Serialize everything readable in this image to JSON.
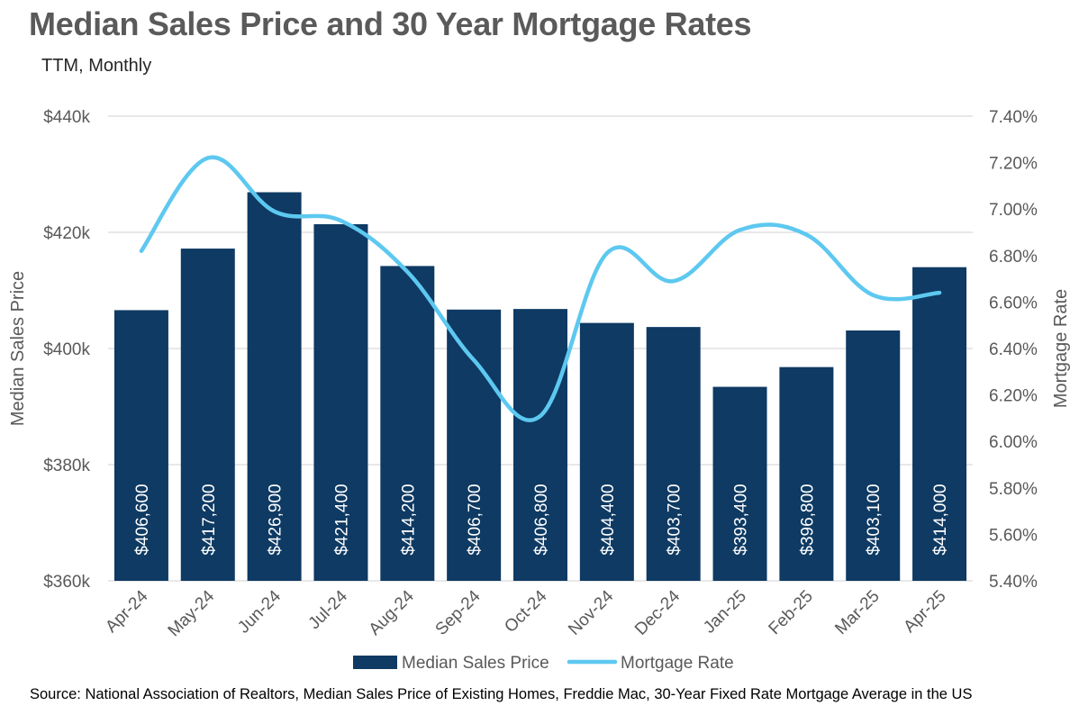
{
  "header": {
    "title": "Median Sales Price and 30 Year Mortgage Rates",
    "subtitle": "TTM, Monthly"
  },
  "source": "Source: National Association of Realtors, Median Sales Price of Existing Homes, Freddie Mac, 30-Year Fixed Rate Mortgage Average in the US",
  "colors": {
    "bar": "#0e3a63",
    "line": "#5dc8f0",
    "grid": "#d9d9d9",
    "text": "#595959"
  },
  "chart_data": {
    "type": "bar",
    "categories": [
      "Apr-24",
      "May-24",
      "Jun-24",
      "Jul-24",
      "Aug-24",
      "Sep-24",
      "Oct-24",
      "Nov-24",
      "Dec-24",
      "Jan-25",
      "Feb-25",
      "Mar-25",
      "Apr-25"
    ],
    "series": [
      {
        "name": "Median Sales Price",
        "type": "bar",
        "axis": "left",
        "values": [
          406600,
          417200,
          426900,
          421400,
          414200,
          406700,
          406800,
          404400,
          403700,
          393400,
          396800,
          403100,
          414000
        ],
        "labels": [
          "$406,600",
          "$417,200",
          "$426,900",
          "$421,400",
          "$414,200",
          "$406,700",
          "$406,800",
          "$404,400",
          "$403,700",
          "$393,400",
          "$396,800",
          "$403,100",
          "$414,000"
        ]
      },
      {
        "name": "Mortgage Rate",
        "type": "line",
        "axis": "right",
        "values": [
          6.82,
          7.22,
          6.99,
          6.95,
          6.73,
          6.35,
          6.11,
          6.81,
          6.69,
          6.91,
          6.89,
          6.63,
          6.64
        ]
      }
    ],
    "ylabel": "Median Sales Price",
    "y2label": "Mortgage Rate",
    "ylim": [
      360000,
      440000
    ],
    "y2lim": [
      5.4,
      7.4
    ],
    "yticks": [
      "$360k",
      "$380k",
      "$400k",
      "$420k",
      "$440k"
    ],
    "y2ticks": [
      "5.40%",
      "5.60%",
      "5.80%",
      "6.00%",
      "6.20%",
      "6.40%",
      "6.60%",
      "6.80%",
      "7.00%",
      "7.20%",
      "7.40%"
    ],
    "grid": true,
    "legend": "bottom"
  }
}
